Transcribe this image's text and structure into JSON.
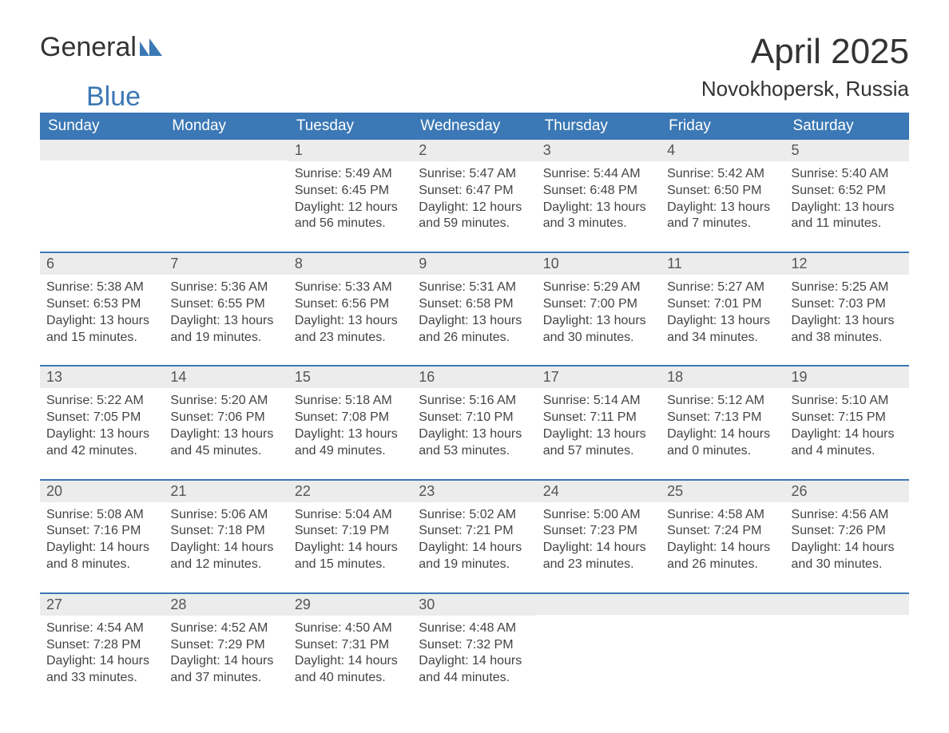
{
  "logo": {
    "text1": "General",
    "text2": "Blue",
    "color_text": "#333333",
    "color_blue": "#3b78b5"
  },
  "title": "April 2025",
  "location": "Novokhopersk, Russia",
  "colors": {
    "header_bg": "#3b78b5",
    "header_text": "#ffffff",
    "daynum_bg": "#ececec",
    "border": "#3b78b5",
    "body_text": "#444444",
    "background": "#ffffff"
  },
  "daynames": [
    "Sunday",
    "Monday",
    "Tuesday",
    "Wednesday",
    "Thursday",
    "Friday",
    "Saturday"
  ],
  "weeks": [
    [
      {
        "num": "",
        "lines": []
      },
      {
        "num": "",
        "lines": []
      },
      {
        "num": "1",
        "lines": [
          "Sunrise: 5:49 AM",
          "Sunset: 6:45 PM",
          "Daylight: 12 hours",
          "and 56 minutes."
        ]
      },
      {
        "num": "2",
        "lines": [
          "Sunrise: 5:47 AM",
          "Sunset: 6:47 PM",
          "Daylight: 12 hours",
          "and 59 minutes."
        ]
      },
      {
        "num": "3",
        "lines": [
          "Sunrise: 5:44 AM",
          "Sunset: 6:48 PM",
          "Daylight: 13 hours",
          "and 3 minutes."
        ]
      },
      {
        "num": "4",
        "lines": [
          "Sunrise: 5:42 AM",
          "Sunset: 6:50 PM",
          "Daylight: 13 hours",
          "and 7 minutes."
        ]
      },
      {
        "num": "5",
        "lines": [
          "Sunrise: 5:40 AM",
          "Sunset: 6:52 PM",
          "Daylight: 13 hours",
          "and 11 minutes."
        ]
      }
    ],
    [
      {
        "num": "6",
        "lines": [
          "Sunrise: 5:38 AM",
          "Sunset: 6:53 PM",
          "Daylight: 13 hours",
          "and 15 minutes."
        ]
      },
      {
        "num": "7",
        "lines": [
          "Sunrise: 5:36 AM",
          "Sunset: 6:55 PM",
          "Daylight: 13 hours",
          "and 19 minutes."
        ]
      },
      {
        "num": "8",
        "lines": [
          "Sunrise: 5:33 AM",
          "Sunset: 6:56 PM",
          "Daylight: 13 hours",
          "and 23 minutes."
        ]
      },
      {
        "num": "9",
        "lines": [
          "Sunrise: 5:31 AM",
          "Sunset: 6:58 PM",
          "Daylight: 13 hours",
          "and 26 minutes."
        ]
      },
      {
        "num": "10",
        "lines": [
          "Sunrise: 5:29 AM",
          "Sunset: 7:00 PM",
          "Daylight: 13 hours",
          "and 30 minutes."
        ]
      },
      {
        "num": "11",
        "lines": [
          "Sunrise: 5:27 AM",
          "Sunset: 7:01 PM",
          "Daylight: 13 hours",
          "and 34 minutes."
        ]
      },
      {
        "num": "12",
        "lines": [
          "Sunrise: 5:25 AM",
          "Sunset: 7:03 PM",
          "Daylight: 13 hours",
          "and 38 minutes."
        ]
      }
    ],
    [
      {
        "num": "13",
        "lines": [
          "Sunrise: 5:22 AM",
          "Sunset: 7:05 PM",
          "Daylight: 13 hours",
          "and 42 minutes."
        ]
      },
      {
        "num": "14",
        "lines": [
          "Sunrise: 5:20 AM",
          "Sunset: 7:06 PM",
          "Daylight: 13 hours",
          "and 45 minutes."
        ]
      },
      {
        "num": "15",
        "lines": [
          "Sunrise: 5:18 AM",
          "Sunset: 7:08 PM",
          "Daylight: 13 hours",
          "and 49 minutes."
        ]
      },
      {
        "num": "16",
        "lines": [
          "Sunrise: 5:16 AM",
          "Sunset: 7:10 PM",
          "Daylight: 13 hours",
          "and 53 minutes."
        ]
      },
      {
        "num": "17",
        "lines": [
          "Sunrise: 5:14 AM",
          "Sunset: 7:11 PM",
          "Daylight: 13 hours",
          "and 57 minutes."
        ]
      },
      {
        "num": "18",
        "lines": [
          "Sunrise: 5:12 AM",
          "Sunset: 7:13 PM",
          "Daylight: 14 hours",
          "and 0 minutes."
        ]
      },
      {
        "num": "19",
        "lines": [
          "Sunrise: 5:10 AM",
          "Sunset: 7:15 PM",
          "Daylight: 14 hours",
          "and 4 minutes."
        ]
      }
    ],
    [
      {
        "num": "20",
        "lines": [
          "Sunrise: 5:08 AM",
          "Sunset: 7:16 PM",
          "Daylight: 14 hours",
          "and 8 minutes."
        ]
      },
      {
        "num": "21",
        "lines": [
          "Sunrise: 5:06 AM",
          "Sunset: 7:18 PM",
          "Daylight: 14 hours",
          "and 12 minutes."
        ]
      },
      {
        "num": "22",
        "lines": [
          "Sunrise: 5:04 AM",
          "Sunset: 7:19 PM",
          "Daylight: 14 hours",
          "and 15 minutes."
        ]
      },
      {
        "num": "23",
        "lines": [
          "Sunrise: 5:02 AM",
          "Sunset: 7:21 PM",
          "Daylight: 14 hours",
          "and 19 minutes."
        ]
      },
      {
        "num": "24",
        "lines": [
          "Sunrise: 5:00 AM",
          "Sunset: 7:23 PM",
          "Daylight: 14 hours",
          "and 23 minutes."
        ]
      },
      {
        "num": "25",
        "lines": [
          "Sunrise: 4:58 AM",
          "Sunset: 7:24 PM",
          "Daylight: 14 hours",
          "and 26 minutes."
        ]
      },
      {
        "num": "26",
        "lines": [
          "Sunrise: 4:56 AM",
          "Sunset: 7:26 PM",
          "Daylight: 14 hours",
          "and 30 minutes."
        ]
      }
    ],
    [
      {
        "num": "27",
        "lines": [
          "Sunrise: 4:54 AM",
          "Sunset: 7:28 PM",
          "Daylight: 14 hours",
          "and 33 minutes."
        ]
      },
      {
        "num": "28",
        "lines": [
          "Sunrise: 4:52 AM",
          "Sunset: 7:29 PM",
          "Daylight: 14 hours",
          "and 37 minutes."
        ]
      },
      {
        "num": "29",
        "lines": [
          "Sunrise: 4:50 AM",
          "Sunset: 7:31 PM",
          "Daylight: 14 hours",
          "and 40 minutes."
        ]
      },
      {
        "num": "30",
        "lines": [
          "Sunrise: 4:48 AM",
          "Sunset: 7:32 PM",
          "Daylight: 14 hours",
          "and 44 minutes."
        ]
      },
      {
        "num": "",
        "lines": []
      },
      {
        "num": "",
        "lines": []
      },
      {
        "num": "",
        "lines": []
      }
    ]
  ]
}
